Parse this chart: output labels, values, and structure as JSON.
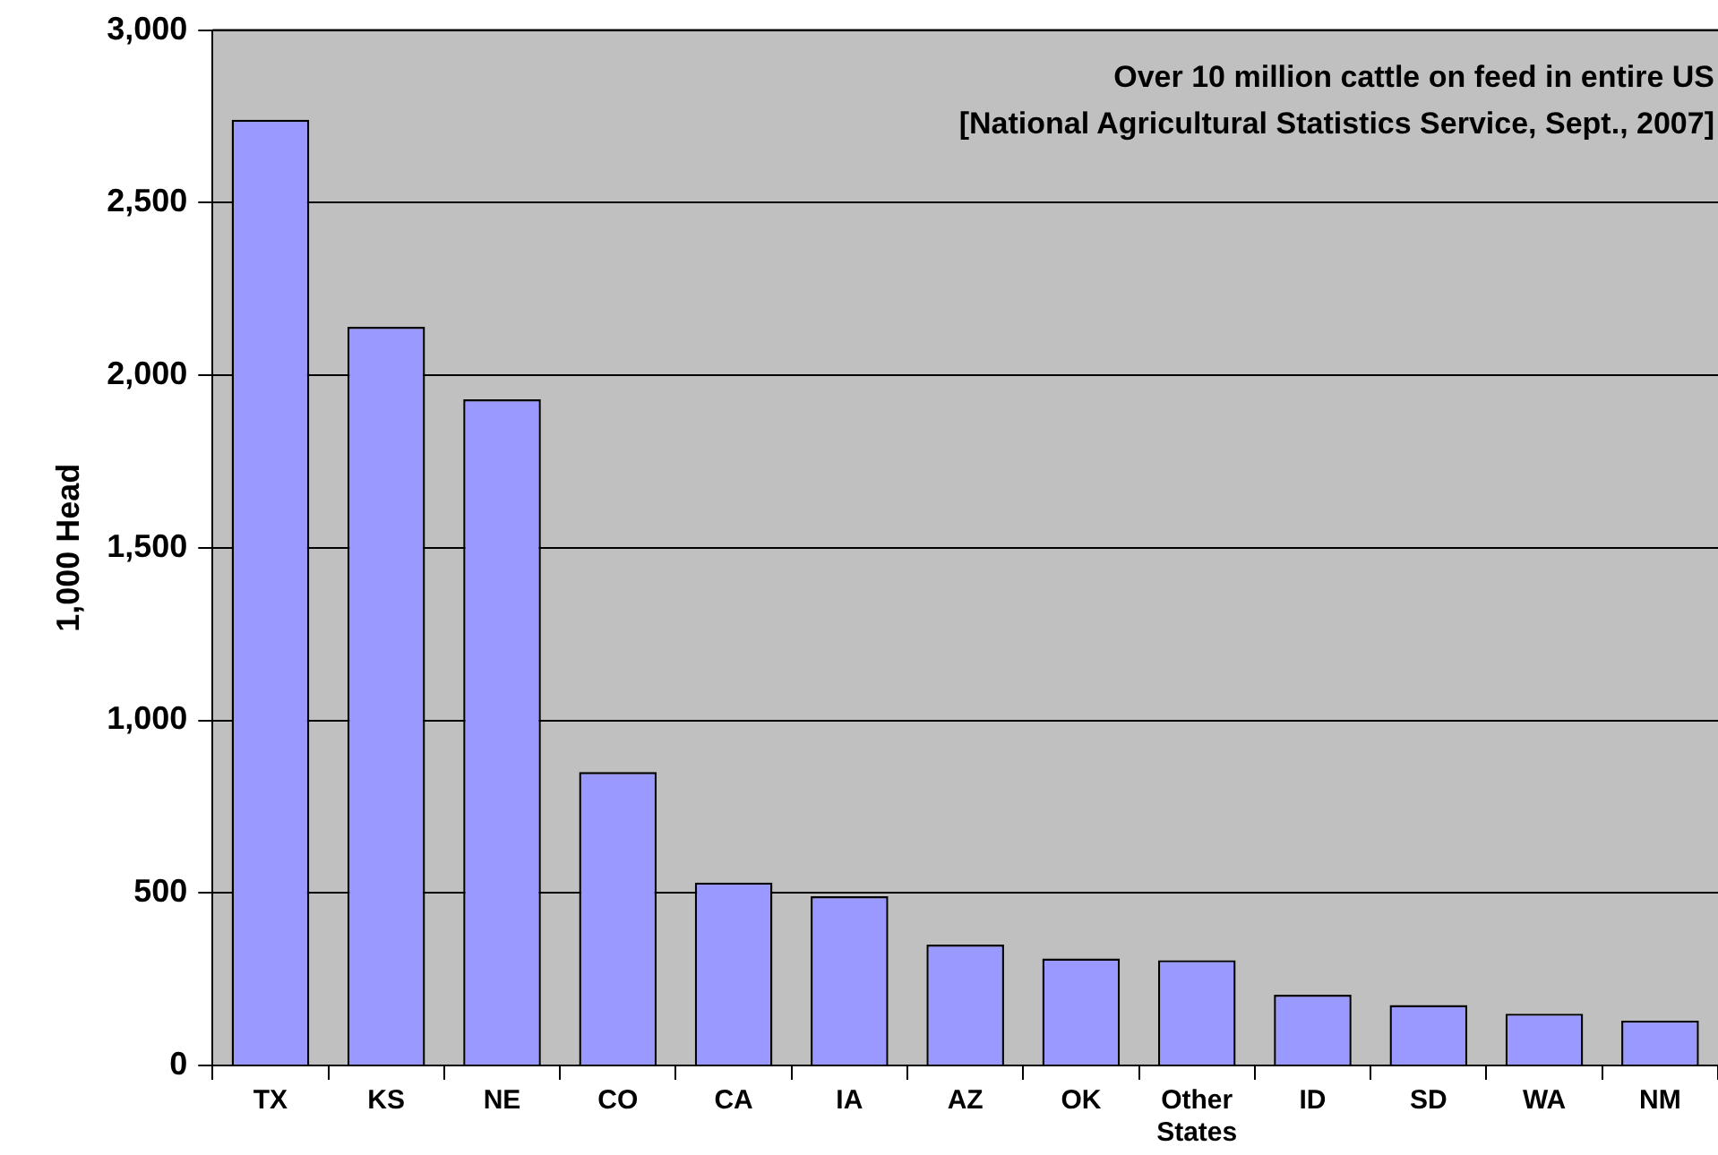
{
  "chart_data": {
    "type": "bar",
    "ylabel": "1,000 Head",
    "annotations": [
      "Over 10 million cattle on feed in entire US",
      "[National Agricultural Statistics Service, Sept., 2007]"
    ],
    "categories": [
      "TX",
      "KS",
      "NE",
      "CO",
      "CA",
      "IA",
      "AZ",
      "OK",
      "Other States",
      "ID",
      "SD",
      "WA",
      "NM"
    ],
    "values": [
      2740,
      2140,
      1930,
      850,
      530,
      490,
      350,
      310,
      305,
      205,
      175,
      150,
      130
    ],
    "color": "#9999ff",
    "ylim": [
      0,
      3000
    ],
    "yticks": [
      0,
      500,
      {
        "value": 1000,
        "label": "1,000"
      },
      {
        "value": 1500,
        "label": "1,500"
      },
      {
        "value": 2000,
        "label": "2,000"
      },
      {
        "value": 2500,
        "label": "2,500"
      },
      {
        "value": 3000,
        "label": "3,000"
      }
    ],
    "grid": "y",
    "legend": false
  }
}
